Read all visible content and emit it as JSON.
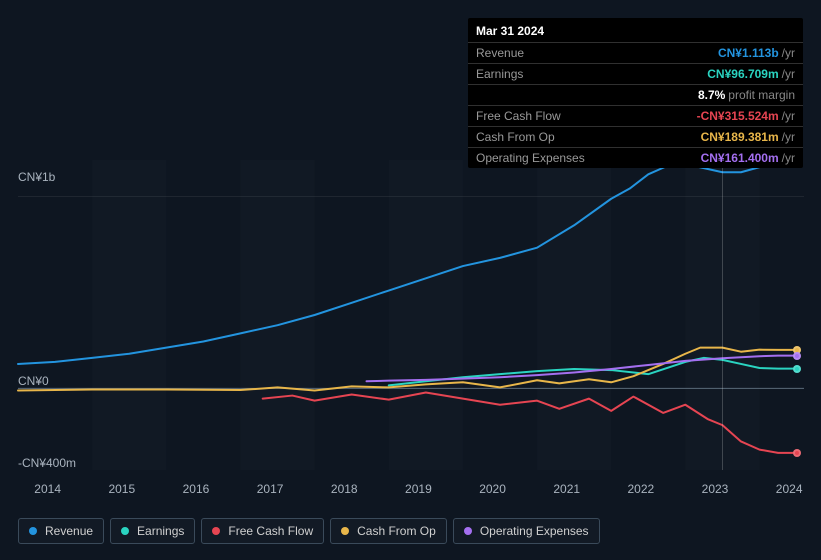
{
  "tooltip": {
    "date": "Mar 31 2024",
    "rows": [
      {
        "label": "Revenue",
        "value": "CN¥1.113b",
        "suffix": "/yr",
        "color": "#2394df"
      },
      {
        "label": "Earnings",
        "value": "CN¥96.709m",
        "suffix": "/yr",
        "color": "#2ad4c1"
      },
      {
        "label": "",
        "value": "8.7%",
        "suffix": "profit margin",
        "color": "#ffffff"
      },
      {
        "label": "Free Cash Flow",
        "value": "-CN¥315.524m",
        "suffix": "/yr",
        "color": "#e64552"
      },
      {
        "label": "Cash From Op",
        "value": "CN¥189.381m",
        "suffix": "/yr",
        "color": "#e8b64a"
      },
      {
        "label": "Operating Expenses",
        "value": "CN¥161.400m",
        "suffix": "/yr",
        "color": "#a46ff0"
      }
    ]
  },
  "chart": {
    "type": "line",
    "background_color": "#0e1621",
    "grid_band_color": "rgba(255,255,255,0.015)",
    "yaxis": {
      "min": -400,
      "max": 1120,
      "ticks": [
        {
          "v": 1000,
          "label": "CN¥1b"
        },
        {
          "v": 0,
          "label": "CN¥0"
        },
        {
          "v": -400,
          "label": "-CN¥400m"
        }
      ],
      "zero_line_color": "#5a6a78",
      "label_color": "#aab4bf",
      "label_fontsize": 12
    },
    "xaxis": {
      "years": [
        2014,
        2015,
        2016,
        2017,
        2018,
        2019,
        2020,
        2021,
        2022,
        2023,
        2024
      ],
      "min": 2014,
      "max": 2024.6,
      "vline_at": 2023.5,
      "label_color": "#aab4bf",
      "label_fontsize": 12
    },
    "series": [
      {
        "id": "revenue",
        "label": "Revenue",
        "color": "#2394df",
        "width": 2,
        "points": [
          [
            2014,
            120
          ],
          [
            2014.5,
            130
          ],
          [
            2015,
            150
          ],
          [
            2015.5,
            170
          ],
          [
            2016,
            200
          ],
          [
            2016.5,
            230
          ],
          [
            2017,
            270
          ],
          [
            2017.5,
            310
          ],
          [
            2018,
            360
          ],
          [
            2018.5,
            420
          ],
          [
            2019,
            480
          ],
          [
            2019.5,
            540
          ],
          [
            2020,
            600
          ],
          [
            2020.5,
            640
          ],
          [
            2021,
            690
          ],
          [
            2021.5,
            800
          ],
          [
            2022,
            930
          ],
          [
            2022.25,
            980
          ],
          [
            2022.5,
            1050
          ],
          [
            2022.75,
            1090
          ],
          [
            2023,
            1100
          ],
          [
            2023.25,
            1080
          ],
          [
            2023.5,
            1060
          ],
          [
            2023.75,
            1060
          ],
          [
            2024,
            1085
          ],
          [
            2024.25,
            1113
          ],
          [
            2024.5,
            1113
          ]
        ]
      },
      {
        "id": "earnings",
        "label": "Earnings",
        "color": "#2ad4c1",
        "width": 2,
        "start": 2019,
        "points": [
          [
            2019,
            15
          ],
          [
            2019.5,
            35
          ],
          [
            2020,
            55
          ],
          [
            2020.5,
            70
          ],
          [
            2021,
            85
          ],
          [
            2021.5,
            95
          ],
          [
            2022,
            90
          ],
          [
            2022.5,
            70
          ],
          [
            2023,
            130
          ],
          [
            2023.25,
            150
          ],
          [
            2023.5,
            140
          ],
          [
            2023.75,
            120
          ],
          [
            2024,
            100
          ],
          [
            2024.25,
            97
          ],
          [
            2024.5,
            97
          ]
        ]
      },
      {
        "id": "fcf",
        "label": "Free Cash Flow",
        "color": "#e64552",
        "width": 2,
        "start": 2017.3,
        "points": [
          [
            2017.3,
            -50
          ],
          [
            2017.7,
            -35
          ],
          [
            2018,
            -60
          ],
          [
            2018.5,
            -30
          ],
          [
            2019,
            -55
          ],
          [
            2019.5,
            -20
          ],
          [
            2020,
            -50
          ],
          [
            2020.5,
            -80
          ],
          [
            2021,
            -60
          ],
          [
            2021.3,
            -100
          ],
          [
            2021.7,
            -50
          ],
          [
            2022,
            -110
          ],
          [
            2022.3,
            -40
          ],
          [
            2022.7,
            -120
          ],
          [
            2023,
            -80
          ],
          [
            2023.3,
            -150
          ],
          [
            2023.5,
            -180
          ],
          [
            2023.75,
            -260
          ],
          [
            2024,
            -300
          ],
          [
            2024.25,
            -316
          ],
          [
            2024.5,
            -316
          ]
        ]
      },
      {
        "id": "cfo",
        "label": "Cash From Op",
        "color": "#e8b64a",
        "width": 2,
        "points": [
          [
            2014,
            -10
          ],
          [
            2015,
            -5
          ],
          [
            2016,
            -5
          ],
          [
            2017,
            -8
          ],
          [
            2017.5,
            5
          ],
          [
            2018,
            -10
          ],
          [
            2018.5,
            10
          ],
          [
            2019,
            5
          ],
          [
            2019.5,
            20
          ],
          [
            2020,
            30
          ],
          [
            2020.5,
            5
          ],
          [
            2021,
            40
          ],
          [
            2021.3,
            25
          ],
          [
            2021.7,
            45
          ],
          [
            2022,
            30
          ],
          [
            2022.3,
            60
          ],
          [
            2022.7,
            120
          ],
          [
            2023,
            170
          ],
          [
            2023.2,
            200
          ],
          [
            2023.5,
            200
          ],
          [
            2023.75,
            180
          ],
          [
            2024,
            190
          ],
          [
            2024.25,
            189
          ],
          [
            2024.5,
            189
          ]
        ]
      },
      {
        "id": "opex",
        "label": "Operating Expenses",
        "color": "#a46ff0",
        "width": 2,
        "start": 2018.7,
        "points": [
          [
            2018.7,
            35
          ],
          [
            2019,
            38
          ],
          [
            2019.5,
            42
          ],
          [
            2020,
            48
          ],
          [
            2020.5,
            55
          ],
          [
            2021,
            65
          ],
          [
            2021.5,
            78
          ],
          [
            2022,
            95
          ],
          [
            2022.5,
            115
          ],
          [
            2023,
            135
          ],
          [
            2023.5,
            148
          ],
          [
            2024,
            158
          ],
          [
            2024.25,
            161
          ],
          [
            2024.5,
            161
          ]
        ]
      }
    ],
    "legend": [
      {
        "id": "revenue",
        "label": "Revenue",
        "color": "#2394df"
      },
      {
        "id": "earnings",
        "label": "Earnings",
        "color": "#2ad4c1"
      },
      {
        "id": "fcf",
        "label": "Free Cash Flow",
        "color": "#e64552"
      },
      {
        "id": "cfo",
        "label": "Cash From Op",
        "color": "#e8b64a"
      },
      {
        "id": "opex",
        "label": "Operating Expenses",
        "color": "#a46ff0"
      }
    ]
  }
}
